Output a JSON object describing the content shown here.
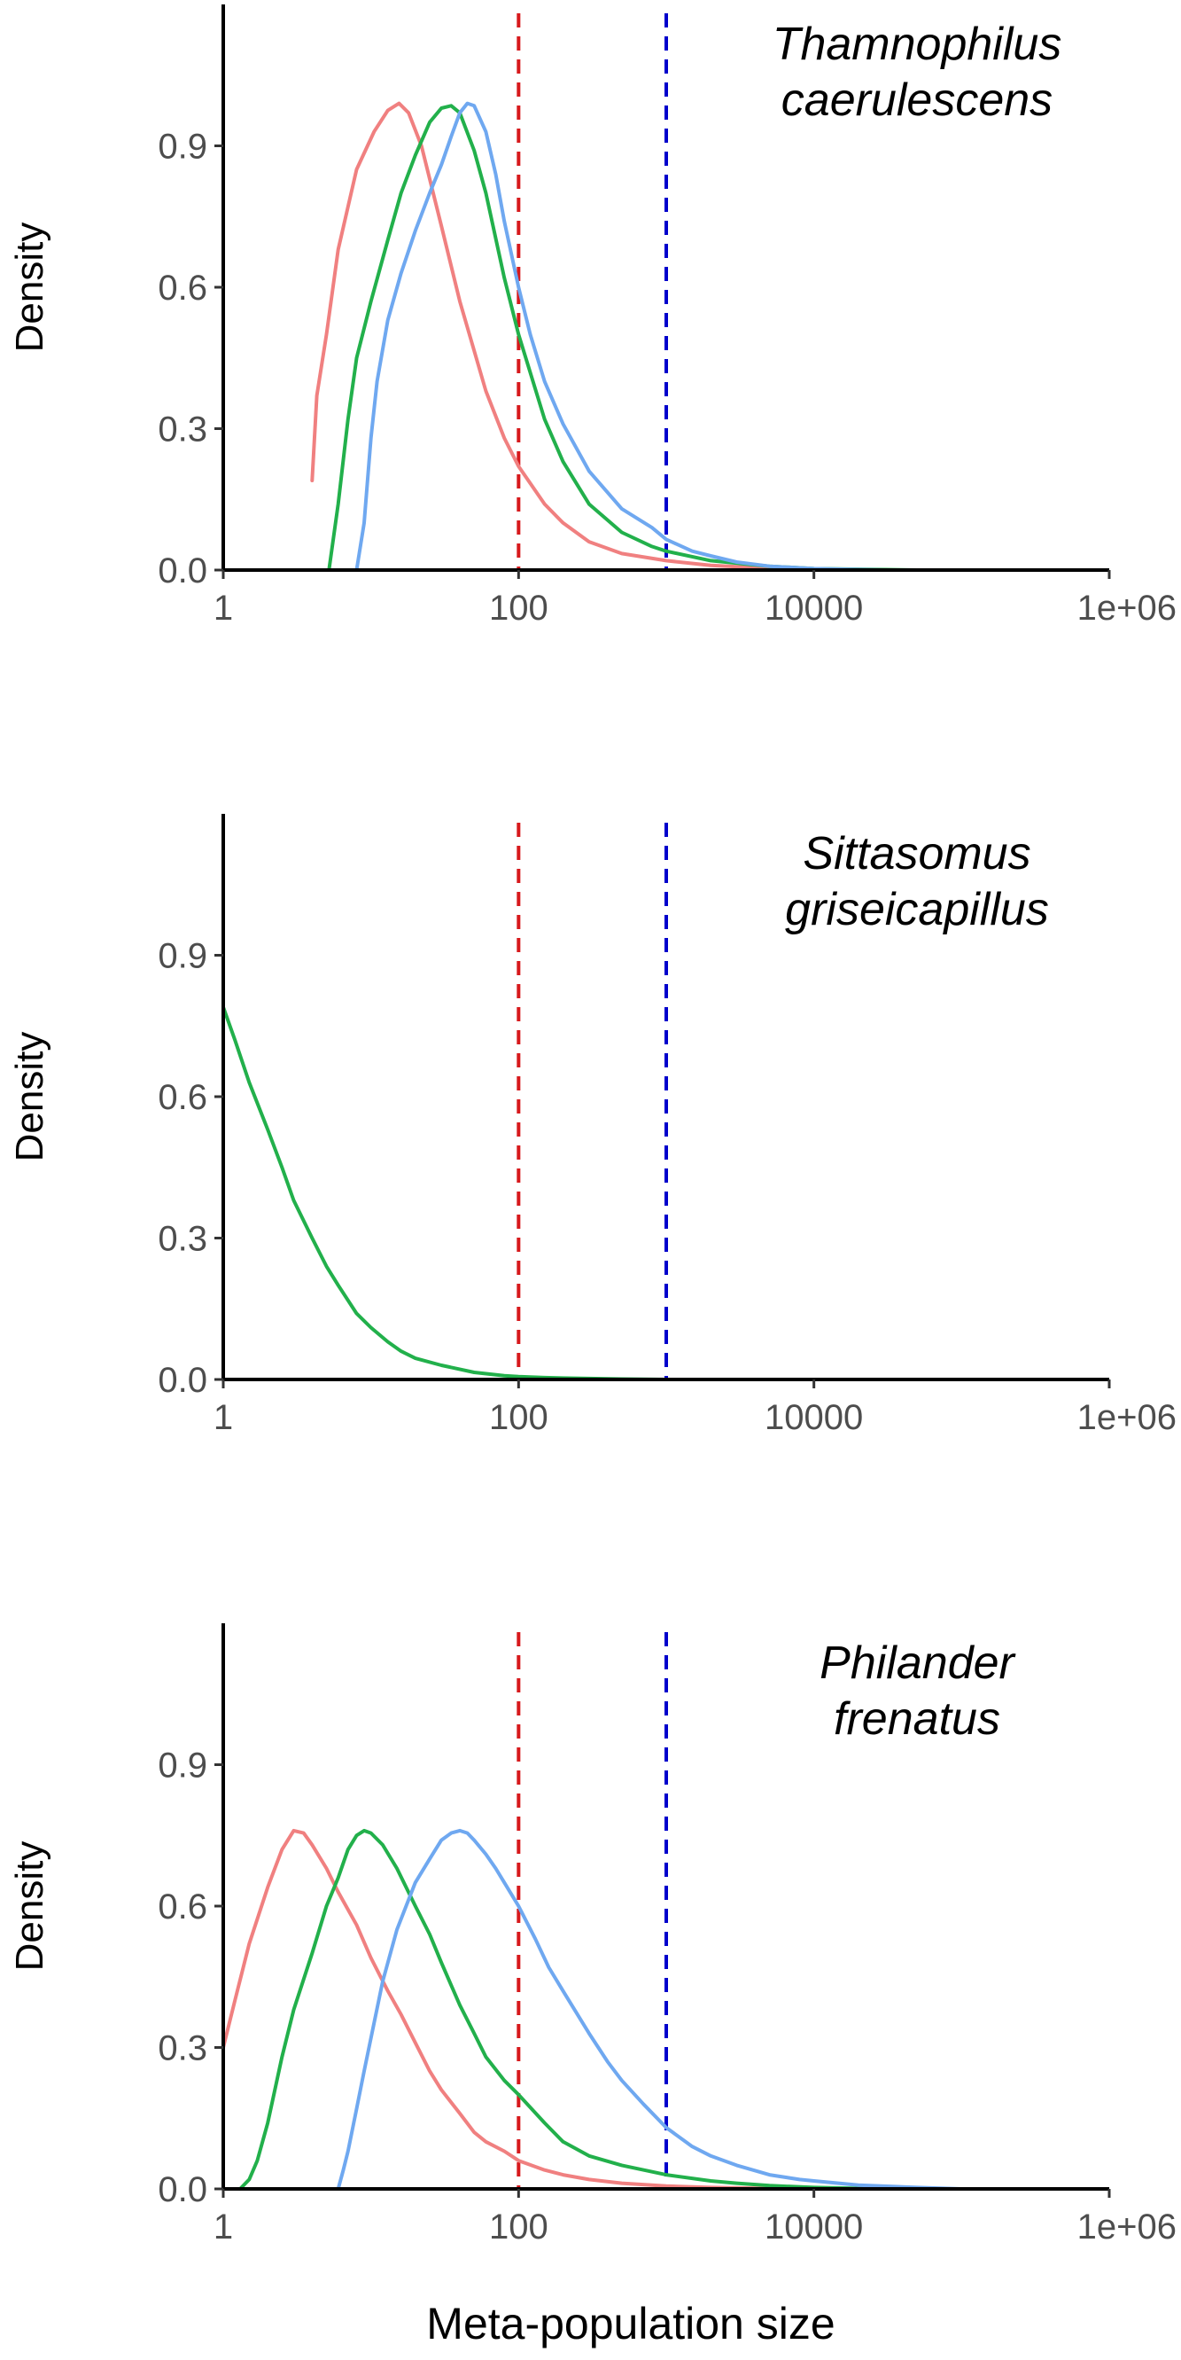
{
  "chart_data": {
    "type": "line",
    "xlabel": "Meta-population size",
    "ylabel": "Density",
    "xscale": "log10",
    "xlim": [
      1,
      1000000
    ],
    "ylim": [
      0,
      1.2
    ],
    "x_tick_values": [
      1,
      100,
      10000,
      1000000
    ],
    "x_tick_labels": [
      "1",
      "100",
      "10000",
      "1e+06"
    ],
    "y_tick_values": [
      0,
      0.3,
      0.6,
      0.9
    ],
    "y_tick_labels": [
      "0.0",
      "0.3",
      "0.6",
      "0.9"
    ],
    "reference_lines": [
      {
        "x": 100,
        "color": "#d7191c",
        "style": "dashed"
      },
      {
        "x": 1000,
        "color": "#0000cc",
        "style": "dashed"
      }
    ],
    "series_colors": [
      "#f08080",
      "#22b04b",
      "#6fa8f0"
    ],
    "panels": [
      {
        "title_line1": "Thamnophilus",
        "title_line2": "caerulescens",
        "series": [
          {
            "color": "#f08080",
            "points": [
              [
                4,
                0.19
              ],
              [
                4.3,
                0.37
              ],
              [
                5,
                0.5
              ],
              [
                6,
                0.68
              ],
              [
                8,
                0.85
              ],
              [
                10.5,
                0.93
              ],
              [
                13,
                0.975
              ],
              [
                15.5,
                0.99
              ],
              [
                18,
                0.97
              ],
              [
                22,
                0.9
              ],
              [
                30,
                0.73
              ],
              [
                40,
                0.57
              ],
              [
                60,
                0.38
              ],
              [
                80,
                0.28
              ],
              [
                100,
                0.22
              ],
              [
                150,
                0.14
              ],
              [
                200,
                0.1
              ],
              [
                300,
                0.06
              ],
              [
                500,
                0.035
              ],
              [
                1000,
                0.02
              ],
              [
                2000,
                0.01
              ],
              [
                4000,
                0.005
              ],
              [
                10000,
                0.002
              ],
              [
                30000,
                0
              ]
            ]
          },
          {
            "color": "#22b04b",
            "points": [
              [
                5.2,
                0
              ],
              [
                6,
                0.14
              ],
              [
                7,
                0.32
              ],
              [
                8,
                0.45
              ],
              [
                10,
                0.57
              ],
              [
                13,
                0.7
              ],
              [
                16,
                0.8
              ],
              [
                20,
                0.88
              ],
              [
                25,
                0.95
              ],
              [
                30,
                0.98
              ],
              [
                35,
                0.985
              ],
              [
                40,
                0.97
              ],
              [
                50,
                0.89
              ],
              [
                60,
                0.8
              ],
              [
                80,
                0.62
              ],
              [
                100,
                0.5
              ],
              [
                150,
                0.32
              ],
              [
                200,
                0.23
              ],
              [
                300,
                0.14
              ],
              [
                500,
                0.08
              ],
              [
                800,
                0.05
              ],
              [
                1000,
                0.04
              ],
              [
                2000,
                0.02
              ],
              [
                5000,
                0.008
              ],
              [
                10000,
                0.003
              ],
              [
                50000,
                0
              ]
            ]
          },
          {
            "color": "#6fa8f0",
            "points": [
              [
                8,
                0
              ],
              [
                9,
                0.1
              ],
              [
                10,
                0.28
              ],
              [
                11,
                0.4
              ],
              [
                13,
                0.53
              ],
              [
                16,
                0.63
              ],
              [
                20,
                0.72
              ],
              [
                25,
                0.8
              ],
              [
                30,
                0.86
              ],
              [
                35,
                0.92
              ],
              [
                40,
                0.97
              ],
              [
                45,
                0.99
              ],
              [
                50,
                0.985
              ],
              [
                60,
                0.93
              ],
              [
                70,
                0.84
              ],
              [
                80,
                0.74
              ],
              [
                100,
                0.6
              ],
              [
                120,
                0.5
              ],
              [
                150,
                0.4
              ],
              [
                200,
                0.31
              ],
              [
                300,
                0.21
              ],
              [
                500,
                0.13
              ],
              [
                800,
                0.09
              ],
              [
                1000,
                0.065
              ],
              [
                1500,
                0.04
              ],
              [
                2000,
                0.03
              ],
              [
                3000,
                0.017
              ],
              [
                5000,
                0.008
              ],
              [
                10000,
                0.003
              ],
              [
                30000,
                0
              ]
            ]
          }
        ]
      },
      {
        "title_line1": "Sittasomus",
        "title_line2": "griseicapillus",
        "series": [
          {
            "color": "#22b04b",
            "points": [
              [
                1,
                0.79
              ],
              [
                1.2,
                0.72
              ],
              [
                1.5,
                0.63
              ],
              [
                2,
                0.53
              ],
              [
                2.5,
                0.45
              ],
              [
                3,
                0.38
              ],
              [
                4,
                0.3
              ],
              [
                5,
                0.24
              ],
              [
                6,
                0.2
              ],
              [
                8,
                0.14
              ],
              [
                10,
                0.11
              ],
              [
                13,
                0.08
              ],
              [
                16,
                0.06
              ],
              [
                20,
                0.045
              ],
              [
                30,
                0.03
              ],
              [
                50,
                0.015
              ],
              [
                80,
                0.008
              ],
              [
                100,
                0.006
              ],
              [
                150,
                0.004
              ],
              [
                200,
                0.003
              ],
              [
                500,
                0.001
              ],
              [
                1000,
                0
              ]
            ]
          }
        ]
      },
      {
        "title_line1": "Philander",
        "title_line2": "frenatus",
        "series": [
          {
            "color": "#f08080",
            "points": [
              [
                1,
                0.3
              ],
              [
                1.2,
                0.4
              ],
              [
                1.5,
                0.52
              ],
              [
                2,
                0.64
              ],
              [
                2.5,
                0.72
              ],
              [
                3,
                0.76
              ],
              [
                3.5,
                0.755
              ],
              [
                4,
                0.73
              ],
              [
                5,
                0.68
              ],
              [
                6,
                0.63
              ],
              [
                8,
                0.56
              ],
              [
                10,
                0.49
              ],
              [
                13,
                0.42
              ],
              [
                16,
                0.37
              ],
              [
                20,
                0.31
              ],
              [
                25,
                0.25
              ],
              [
                30,
                0.21
              ],
              [
                40,
                0.16
              ],
              [
                50,
                0.12
              ],
              [
                60,
                0.1
              ],
              [
                80,
                0.08
              ],
              [
                100,
                0.06
              ],
              [
                150,
                0.04
              ],
              [
                200,
                0.03
              ],
              [
                300,
                0.02
              ],
              [
                500,
                0.012
              ],
              [
                1000,
                0.006
              ],
              [
                2000,
                0.003
              ],
              [
                5000,
                0.001
              ],
              [
                10000,
                0
              ]
            ]
          },
          {
            "color": "#22b04b",
            "points": [
              [
                1.3,
                0
              ],
              [
                1.5,
                0.02
              ],
              [
                1.7,
                0.06
              ],
              [
                2,
                0.14
              ],
              [
                2.5,
                0.28
              ],
              [
                3,
                0.38
              ],
              [
                4,
                0.5
              ],
              [
                5,
                0.6
              ],
              [
                6,
                0.66
              ],
              [
                7,
                0.72
              ],
              [
                8,
                0.75
              ],
              [
                9,
                0.76
              ],
              [
                10,
                0.755
              ],
              [
                12,
                0.73
              ],
              [
                15,
                0.68
              ],
              [
                20,
                0.6
              ],
              [
                25,
                0.54
              ],
              [
                30,
                0.48
              ],
              [
                40,
                0.39
              ],
              [
                50,
                0.33
              ],
              [
                60,
                0.28
              ],
              [
                80,
                0.23
              ],
              [
                100,
                0.2
              ],
              [
                150,
                0.14
              ],
              [
                200,
                0.1
              ],
              [
                300,
                0.07
              ],
              [
                500,
                0.05
              ],
              [
                1000,
                0.03
              ],
              [
                2000,
                0.017
              ],
              [
                3000,
                0.012
              ],
              [
                5000,
                0.007
              ],
              [
                10000,
                0.003
              ],
              [
                30000,
                0
              ]
            ]
          },
          {
            "color": "#6fa8f0",
            "points": [
              [
                6,
                0
              ],
              [
                6.5,
                0.04
              ],
              [
                7,
                0.08
              ],
              [
                8,
                0.17
              ],
              [
                9,
                0.25
              ],
              [
                10,
                0.32
              ],
              [
                12,
                0.44
              ],
              [
                15,
                0.55
              ],
              [
                20,
                0.65
              ],
              [
                25,
                0.7
              ],
              [
                30,
                0.74
              ],
              [
                35,
                0.755
              ],
              [
                40,
                0.76
              ],
              [
                45,
                0.755
              ],
              [
                50,
                0.74
              ],
              [
                60,
                0.71
              ],
              [
                70,
                0.68
              ],
              [
                80,
                0.65
              ],
              [
                100,
                0.6
              ],
              [
                130,
                0.53
              ],
              [
                160,
                0.47
              ],
              [
                200,
                0.42
              ],
              [
                300,
                0.33
              ],
              [
                400,
                0.27
              ],
              [
                500,
                0.23
              ],
              [
                700,
                0.18
              ],
              [
                1000,
                0.13
              ],
              [
                1500,
                0.09
              ],
              [
                2000,
                0.07
              ],
              [
                3000,
                0.05
              ],
              [
                5000,
                0.03
              ],
              [
                8000,
                0.02
              ],
              [
                10000,
                0.017
              ],
              [
                20000,
                0.008
              ],
              [
                50000,
                0.003
              ],
              [
                100000,
                0
              ]
            ]
          }
        ]
      }
    ]
  }
}
